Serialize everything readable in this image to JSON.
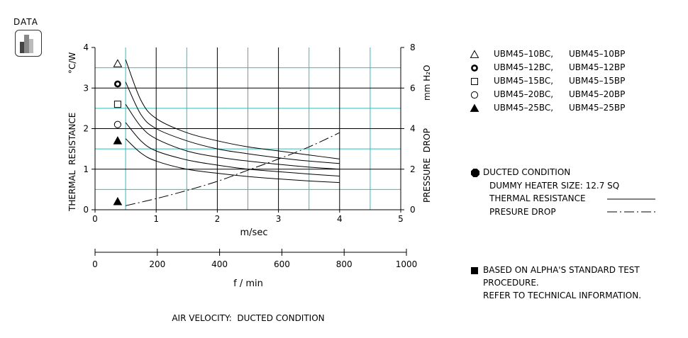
{
  "badge": {
    "label": "DATA"
  },
  "chart_data": {
    "type": "line",
    "x_axis": {
      "label": "m/sec",
      "range": [
        0,
        5
      ],
      "ticks": [
        0,
        1,
        2,
        3,
        4,
        5
      ]
    },
    "x2_axis": {
      "label": "f / min",
      "range": [
        0,
        1000
      ],
      "ticks": [
        0,
        200,
        400,
        600,
        800,
        1000
      ]
    },
    "y_left": {
      "label": "THERMAL  RESISTANCE",
      "unit": "°C/W",
      "range": [
        0,
        4
      ],
      "ticks": [
        0,
        1,
        2,
        3,
        4
      ]
    },
    "y_right": {
      "label": "PRESSURE  DROP",
      "unit": "mm H₂O",
      "range": [
        0,
        8
      ],
      "ticks": [
        0,
        2,
        4,
        6,
        8
      ]
    },
    "grid": true,
    "series": [
      {
        "name": "UBM45–10BC,  UBM45–10BP",
        "marker": "triangle-open",
        "marker_at": [
          0.37,
          3.6
        ],
        "x": [
          0.5,
          0.75,
          1.0,
          1.5,
          2.0,
          2.5,
          3.0,
          3.5,
          4.0
        ],
        "y": [
          3.7,
          2.7,
          2.25,
          1.9,
          1.7,
          1.55,
          1.45,
          1.35,
          1.25
        ]
      },
      {
        "name": "UBM45–12BC,  UBM45–12BP",
        "marker": "circle-bold",
        "marker_at": [
          0.37,
          3.1
        ],
        "x": [
          0.5,
          0.75,
          1.0,
          1.5,
          2.0,
          2.5,
          3.0,
          3.5,
          4.0
        ],
        "y": [
          3.15,
          2.35,
          2.0,
          1.7,
          1.5,
          1.38,
          1.28,
          1.2,
          1.14
        ]
      },
      {
        "name": "UBM45–15BC,  UBM45–15BP",
        "marker": "square-open",
        "marker_at": [
          0.37,
          2.6
        ],
        "x": [
          0.5,
          0.75,
          1.0,
          1.5,
          2.0,
          2.5,
          3.0,
          3.5,
          4.0
        ],
        "y": [
          2.6,
          2.05,
          1.75,
          1.45,
          1.3,
          1.2,
          1.12,
          1.05,
          1.0
        ]
      },
      {
        "name": "UBM45–20BC,  UBM45–20BP",
        "marker": "circle-open",
        "marker_at": [
          0.37,
          2.1
        ],
        "x": [
          0.5,
          0.75,
          1.0,
          1.5,
          2.0,
          2.5,
          3.0,
          3.5,
          4.0
        ],
        "y": [
          2.15,
          1.7,
          1.45,
          1.23,
          1.1,
          1.0,
          0.94,
          0.88,
          0.83
        ]
      },
      {
        "name": "UBM45–25BC,  UBM45–25BP",
        "marker": "triangle-filled",
        "marker_at": [
          0.37,
          1.7
        ],
        "x": [
          0.5,
          0.75,
          1.0,
          1.5,
          2.0,
          2.5,
          3.0,
          3.5,
          4.0
        ],
        "y": [
          1.75,
          1.4,
          1.2,
          1.0,
          0.9,
          0.82,
          0.76,
          0.71,
          0.67
        ]
      }
    ],
    "pressure_drop": {
      "marker": "triangle-filled",
      "marker_at": [
        0.37,
        0.2
      ],
      "axis": "right",
      "x": [
        0.5,
        1.0,
        1.5,
        2.0,
        2.5,
        3.0,
        3.5,
        4.0
      ],
      "y": [
        0.2,
        0.55,
        0.95,
        1.4,
        1.95,
        2.5,
        3.1,
        3.8
      ]
    }
  },
  "legend_right": {
    "ducted_title": "DUCTED CONDITION",
    "heater_size": "DUMMY HEATER SIZE: 12.7 SQ",
    "thermal_resistance": "THERMAL RESISTANCE",
    "pressure_drop": "PRESURE DROP"
  },
  "notes": {
    "line1": "BASED ON ALPHA'S STANDARD TEST",
    "line2": "PROCEDURE.",
    "line3": "REFER TO TECHNICAL INFORMATION."
  },
  "caption": "AIR VELOCITY:  DUCTED CONDITION",
  "colors": {
    "grid": "#33bbbb",
    "line": "#000000"
  }
}
